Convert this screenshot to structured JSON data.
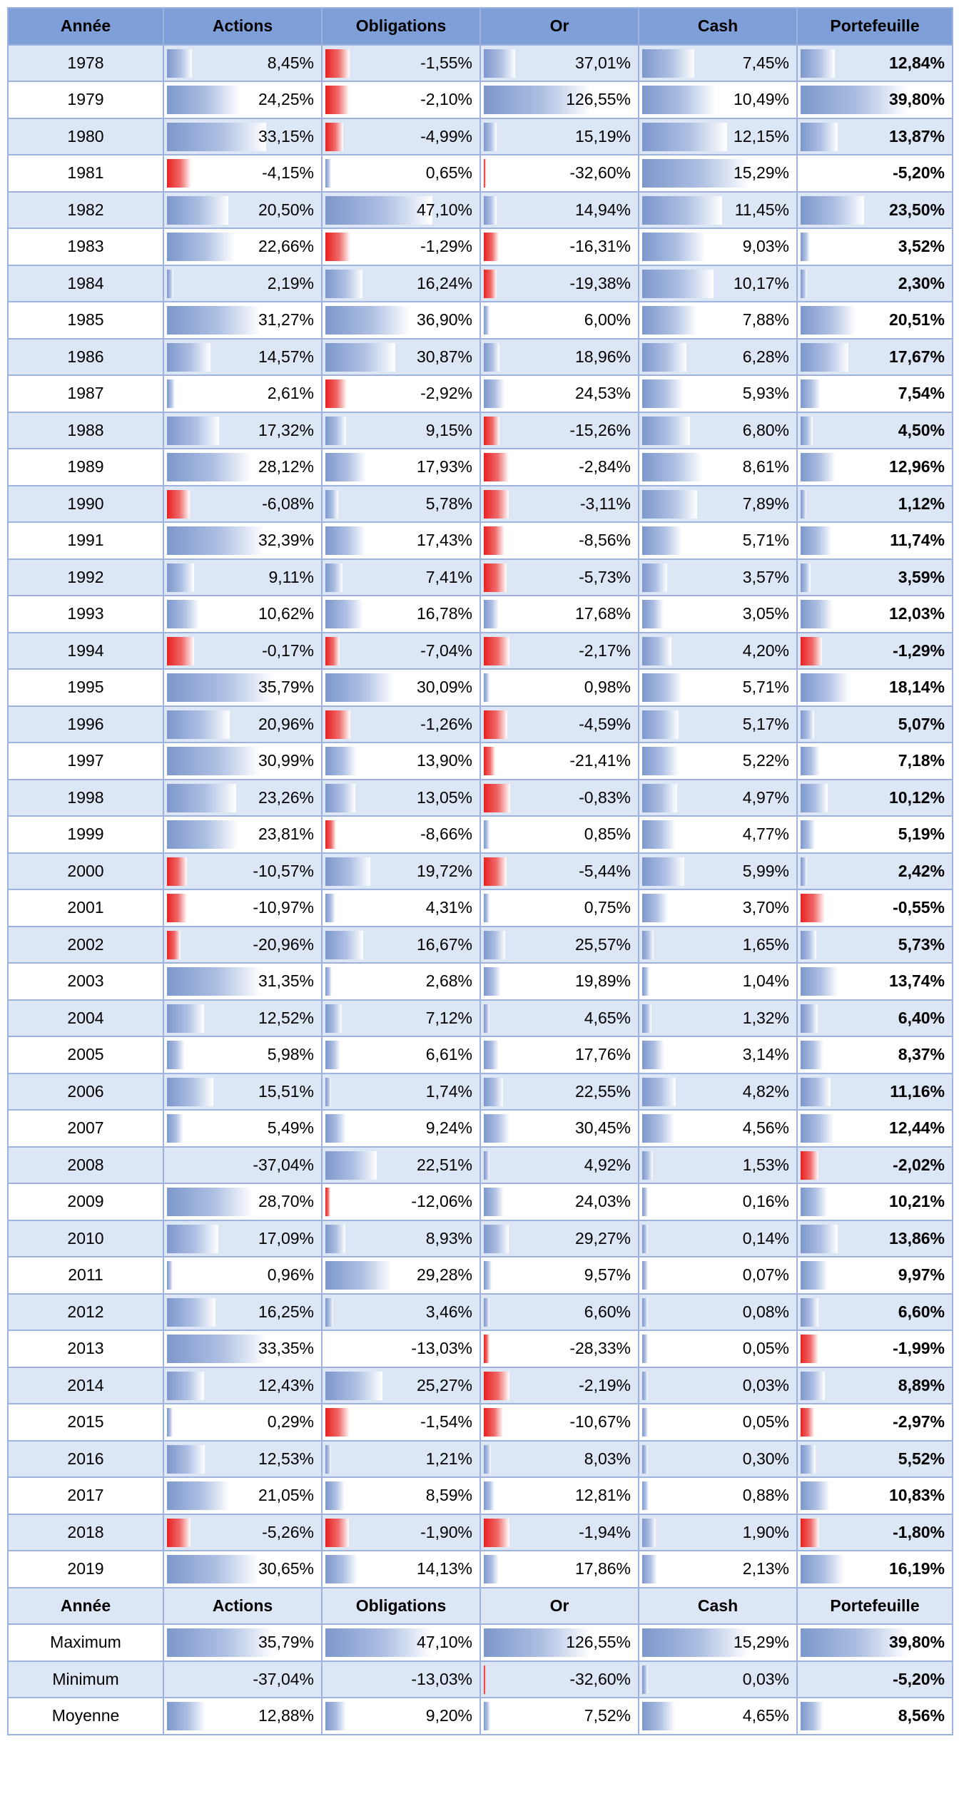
{
  "headers": [
    "Année",
    "Actions",
    "Obligations",
    "Or",
    "Cash",
    "Portefeuille"
  ],
  "rows": [
    {
      "year": "1978",
      "values": [
        "8,45%",
        "-1,55%",
        "37,01%",
        "7,45%",
        "12,84%"
      ]
    },
    {
      "year": "1979",
      "values": [
        "24,25%",
        "-2,10%",
        "126,55%",
        "10,49%",
        "39,80%"
      ]
    },
    {
      "year": "1980",
      "values": [
        "33,15%",
        "-4,99%",
        "15,19%",
        "12,15%",
        "13,87%"
      ]
    },
    {
      "year": "1981",
      "values": [
        "-4,15%",
        "0,65%",
        "-32,60%",
        "15,29%",
        "-5,20%"
      ]
    },
    {
      "year": "1982",
      "values": [
        "20,50%",
        "47,10%",
        "14,94%",
        "11,45%",
        "23,50%"
      ]
    },
    {
      "year": "1983",
      "values": [
        "22,66%",
        "-1,29%",
        "-16,31%",
        "9,03%",
        "3,52%"
      ]
    },
    {
      "year": "1984",
      "values": [
        "2,19%",
        "16,24%",
        "-19,38%",
        "10,17%",
        "2,30%"
      ]
    },
    {
      "year": "1985",
      "values": [
        "31,27%",
        "36,90%",
        "6,00%",
        "7,88%",
        "20,51%"
      ]
    },
    {
      "year": "1986",
      "values": [
        "14,57%",
        "30,87%",
        "18,96%",
        "6,28%",
        "17,67%"
      ]
    },
    {
      "year": "1987",
      "values": [
        "2,61%",
        "-2,92%",
        "24,53%",
        "5,93%",
        "7,54%"
      ]
    },
    {
      "year": "1988",
      "values": [
        "17,32%",
        "9,15%",
        "-15,26%",
        "6,80%",
        "4,50%"
      ]
    },
    {
      "year": "1989",
      "values": [
        "28,12%",
        "17,93%",
        "-2,84%",
        "8,61%",
        "12,96%"
      ]
    },
    {
      "year": "1990",
      "values": [
        "-6,08%",
        "5,78%",
        "-3,11%",
        "7,89%",
        "1,12%"
      ]
    },
    {
      "year": "1991",
      "values": [
        "32,39%",
        "17,43%",
        "-8,56%",
        "5,71%",
        "11,74%"
      ]
    },
    {
      "year": "1992",
      "values": [
        "9,11%",
        "7,41%",
        "-5,73%",
        "3,57%",
        "3,59%"
      ]
    },
    {
      "year": "1993",
      "values": [
        "10,62%",
        "16,78%",
        "17,68%",
        "3,05%",
        "12,03%"
      ]
    },
    {
      "year": "1994",
      "values": [
        "-0,17%",
        "-7,04%",
        "-2,17%",
        "4,20%",
        "-1,29%"
      ]
    },
    {
      "year": "1995",
      "values": [
        "35,79%",
        "30,09%",
        "0,98%",
        "5,71%",
        "18,14%"
      ]
    },
    {
      "year": "1996",
      "values": [
        "20,96%",
        "-1,26%",
        "-4,59%",
        "5,17%",
        "5,07%"
      ]
    },
    {
      "year": "1997",
      "values": [
        "30,99%",
        "13,90%",
        "-21,41%",
        "5,22%",
        "7,18%"
      ]
    },
    {
      "year": "1998",
      "values": [
        "23,26%",
        "13,05%",
        "-0,83%",
        "4,97%",
        "10,12%"
      ]
    },
    {
      "year": "1999",
      "values": [
        "23,81%",
        "-8,66%",
        "0,85%",
        "4,77%",
        "5,19%"
      ]
    },
    {
      "year": "2000",
      "values": [
        "-10,57%",
        "19,72%",
        "-5,44%",
        "5,99%",
        "2,42%"
      ]
    },
    {
      "year": "2001",
      "values": [
        "-10,97%",
        "4,31%",
        "0,75%",
        "3,70%",
        "-0,55%"
      ]
    },
    {
      "year": "2002",
      "values": [
        "-20,96%",
        "16,67%",
        "25,57%",
        "1,65%",
        "5,73%"
      ]
    },
    {
      "year": "2003",
      "values": [
        "31,35%",
        "2,68%",
        "19,89%",
        "1,04%",
        "13,74%"
      ]
    },
    {
      "year": "2004",
      "values": [
        "12,52%",
        "7,12%",
        "4,65%",
        "1,32%",
        "6,40%"
      ]
    },
    {
      "year": "2005",
      "values": [
        "5,98%",
        "6,61%",
        "17,76%",
        "3,14%",
        "8,37%"
      ]
    },
    {
      "year": "2006",
      "values": [
        "15,51%",
        "1,74%",
        "22,55%",
        "4,82%",
        "11,16%"
      ]
    },
    {
      "year": "2007",
      "values": [
        "5,49%",
        "9,24%",
        "30,45%",
        "4,56%",
        "12,44%"
      ]
    },
    {
      "year": "2008",
      "values": [
        "-37,04%",
        "22,51%",
        "4,92%",
        "1,53%",
        "-2,02%"
      ]
    },
    {
      "year": "2009",
      "values": [
        "28,70%",
        "-12,06%",
        "24,03%",
        "0,16%",
        "10,21%"
      ]
    },
    {
      "year": "2010",
      "values": [
        "17,09%",
        "8,93%",
        "29,27%",
        "0,14%",
        "13,86%"
      ]
    },
    {
      "year": "2011",
      "values": [
        "0,96%",
        "29,28%",
        "9,57%",
        "0,07%",
        "9,97%"
      ]
    },
    {
      "year": "2012",
      "values": [
        "16,25%",
        "3,46%",
        "6,60%",
        "0,08%",
        "6,60%"
      ]
    },
    {
      "year": "2013",
      "values": [
        "33,35%",
        "-13,03%",
        "-28,33%",
        "0,05%",
        "-1,99%"
      ]
    },
    {
      "year": "2014",
      "values": [
        "12,43%",
        "25,27%",
        "-2,19%",
        "0,03%",
        "8,89%"
      ]
    },
    {
      "year": "2015",
      "values": [
        "0,29%",
        "-1,54%",
        "-10,67%",
        "0,05%",
        "-2,97%"
      ]
    },
    {
      "year": "2016",
      "values": [
        "12,53%",
        "1,21%",
        "8,03%",
        "0,30%",
        "5,52%"
      ]
    },
    {
      "year": "2017",
      "values": [
        "21,05%",
        "8,59%",
        "12,81%",
        "0,88%",
        "10,83%"
      ]
    },
    {
      "year": "2018",
      "values": [
        "-5,26%",
        "-1,90%",
        "-1,94%",
        "1,90%",
        "-1,80%"
      ]
    },
    {
      "year": "2019",
      "values": [
        "30,65%",
        "14,13%",
        "17,86%",
        "2,13%",
        "16,19%"
      ]
    }
  ],
  "summary": [
    {
      "year": "Maximum",
      "values": [
        "35,79%",
        "47,10%",
        "126,55%",
        "15,29%",
        "39,80%"
      ]
    },
    {
      "year": "Minimum",
      "values": [
        "-37,04%",
        "-13,03%",
        "-32,60%",
        "0,03%",
        "-5,20%"
      ]
    },
    {
      "year": "Moyenne",
      "values": [
        "12,88%",
        "9,20%",
        "7,52%",
        "4,65%",
        "8,56%"
      ]
    }
  ],
  "colors": {
    "header_bg": "#7f9fd9",
    "row_stripe": "#dce6f4",
    "border": "#9db3dd",
    "bar_positive": "#7d97cc",
    "bar_negative": "#e82020"
  }
}
